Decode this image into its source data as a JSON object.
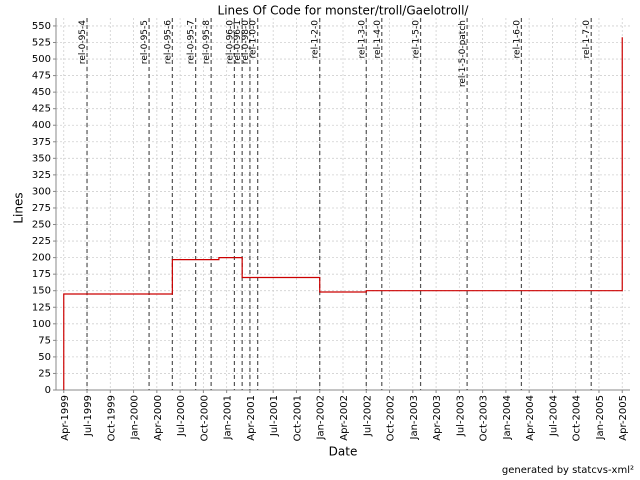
{
  "chart_data": {
    "type": "line",
    "title": "Lines Of Code for monster/troll/Gaelotroll/",
    "x_label": "Date",
    "y_label": "Lines",
    "step": "post",
    "color": "#cc0000",
    "grid": true,
    "x": [
      "1999-04",
      "1999-04",
      "2000-06",
      "2000-12",
      "2001-03",
      "2002-01",
      "2002-07",
      "2005-04"
    ],
    "values": [
      0,
      145,
      197,
      200,
      170,
      148,
      150,
      533
    ],
    "markers": [
      {
        "x": "1999-07",
        "label": "rel-0-95-4"
      },
      {
        "x": "2000-03",
        "label": "rel-0-95-5"
      },
      {
        "x": "2000-06",
        "label": "rel-0-95-6"
      },
      {
        "x": "2000-09",
        "label": "rel-0-95-7"
      },
      {
        "x": "2000-11",
        "label": "rel-0-95-8"
      },
      {
        "x": "2001-02",
        "label": "rel-0-96-0"
      },
      {
        "x": "2001-03",
        "label": "rel-0-96-1"
      },
      {
        "x": "2001-04",
        "label": "rel-0-98-0"
      },
      {
        "x": "2001-05",
        "label": "rel-1-0-0"
      },
      {
        "x": "2002-01",
        "label": "rel-1-2-0"
      },
      {
        "x": "2002-07",
        "label": "rel-1-3-0"
      },
      {
        "x": "2002-09",
        "label": "rel-1-4-0"
      },
      {
        "x": "2003-02",
        "label": "rel-1-5-0"
      },
      {
        "x": "2003-08",
        "label": "rel-1-5-0-patch"
      },
      {
        "x": "2004-03",
        "label": "rel-1-6-0"
      },
      {
        "x": "2004-12",
        "label": "rel-1-7-0"
      }
    ],
    "xlim": [
      "1999-03",
      "2005-05"
    ],
    "xticks": [
      {
        "value": "1999-04",
        "label": "Apr-1999"
      },
      {
        "value": "1999-07",
        "label": "Jul-1999"
      },
      {
        "value": "1999-10",
        "label": "Oct-1999"
      },
      {
        "value": "2000-01",
        "label": "Jan-2000"
      },
      {
        "value": "2000-04",
        "label": "Apr-2000"
      },
      {
        "value": "2000-07",
        "label": "Jul-2000"
      },
      {
        "value": "2000-10",
        "label": "Oct-2000"
      },
      {
        "value": "2001-01",
        "label": "Jan-2001"
      },
      {
        "value": "2001-04",
        "label": "Apr-2001"
      },
      {
        "value": "2001-07",
        "label": "Jul-2001"
      },
      {
        "value": "2001-10",
        "label": "Oct-2001"
      },
      {
        "value": "2002-01",
        "label": "Jan-2002"
      },
      {
        "value": "2002-04",
        "label": "Apr-2002"
      },
      {
        "value": "2002-07",
        "label": "Jul-2002"
      },
      {
        "value": "2002-10",
        "label": "Oct-2002"
      },
      {
        "value": "2003-01",
        "label": "Jan-2003"
      },
      {
        "value": "2003-04",
        "label": "Apr-2003"
      },
      {
        "value": "2003-07",
        "label": "Jul-2003"
      },
      {
        "value": "2003-10",
        "label": "Oct-2003"
      },
      {
        "value": "2004-01",
        "label": "Jan-2004"
      },
      {
        "value": "2004-04",
        "label": "Apr-2004"
      },
      {
        "value": "2004-07",
        "label": "Jul-2004"
      },
      {
        "value": "2004-10",
        "label": "Oct-2004"
      },
      {
        "value": "2005-01",
        "label": "Jan-2005"
      },
      {
        "value": "2005-04",
        "label": "Apr-2005"
      }
    ],
    "ylim": [
      0,
      562
    ],
    "yticks": [
      0,
      25,
      50,
      75,
      100,
      125,
      150,
      175,
      200,
      225,
      250,
      275,
      300,
      325,
      350,
      375,
      400,
      425,
      450,
      475,
      500,
      525,
      550
    ],
    "footer": "generated by statcvs-xml²"
  }
}
